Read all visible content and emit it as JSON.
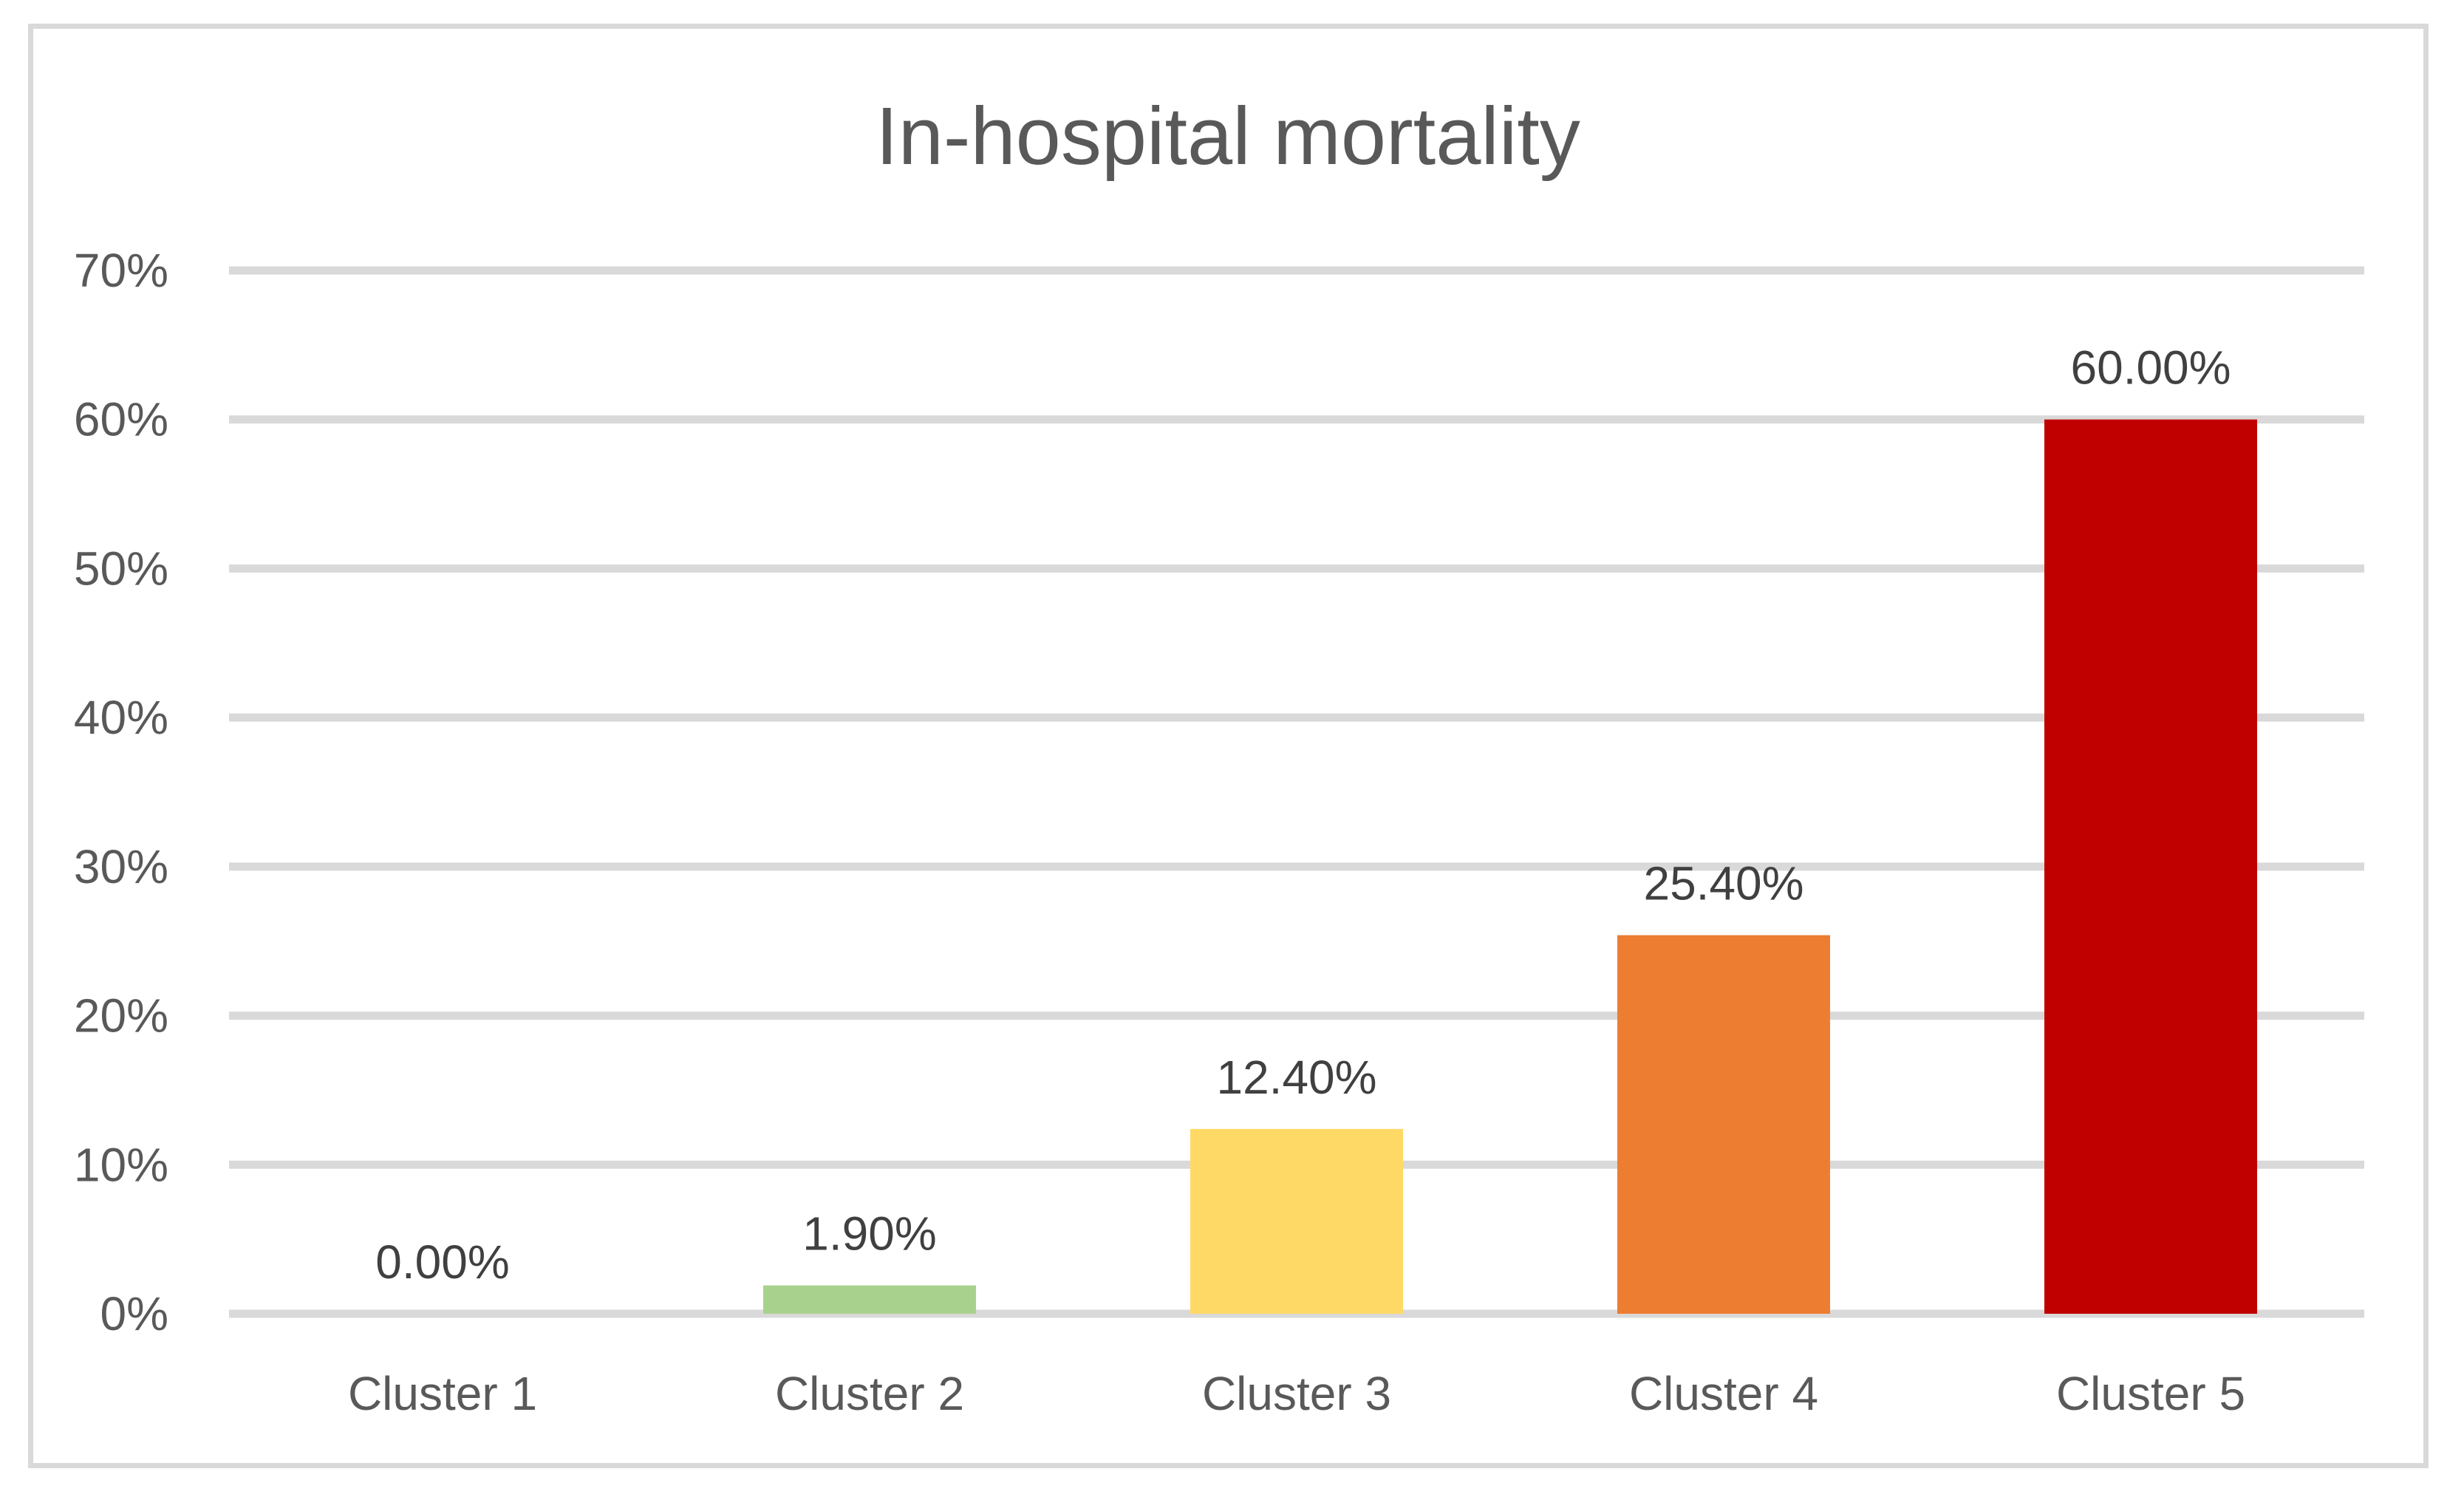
{
  "chart_data": {
    "type": "bar",
    "title": "In-hospital mortality",
    "xlabel": "",
    "ylabel": "",
    "categories": [
      "Cluster 1",
      "Cluster 2",
      "Cluster 3",
      "Cluster 4",
      "Cluster 5"
    ],
    "values": [
      0.0,
      1.9,
      12.4,
      25.4,
      60.0
    ],
    "data_labels": [
      "0.00%",
      "1.90%",
      "12.40%",
      "25.40%",
      "60.00%"
    ],
    "bar_colors": [
      "#a9d18e",
      "#a9d18e",
      "#ffd966",
      "#ed7d31",
      "#c00000"
    ],
    "ylim": [
      0,
      70
    ],
    "y_ticks": [
      0,
      10,
      20,
      30,
      40,
      50,
      60,
      70
    ],
    "y_tick_labels": [
      "0%",
      "10%",
      "20%",
      "30%",
      "40%",
      "50%",
      "60%",
      "70%"
    ],
    "grid": true,
    "legend": "none"
  },
  "colors": {
    "gridline": "#d9d9d9",
    "frame": "#d9d9d9",
    "text": "#595959"
  }
}
